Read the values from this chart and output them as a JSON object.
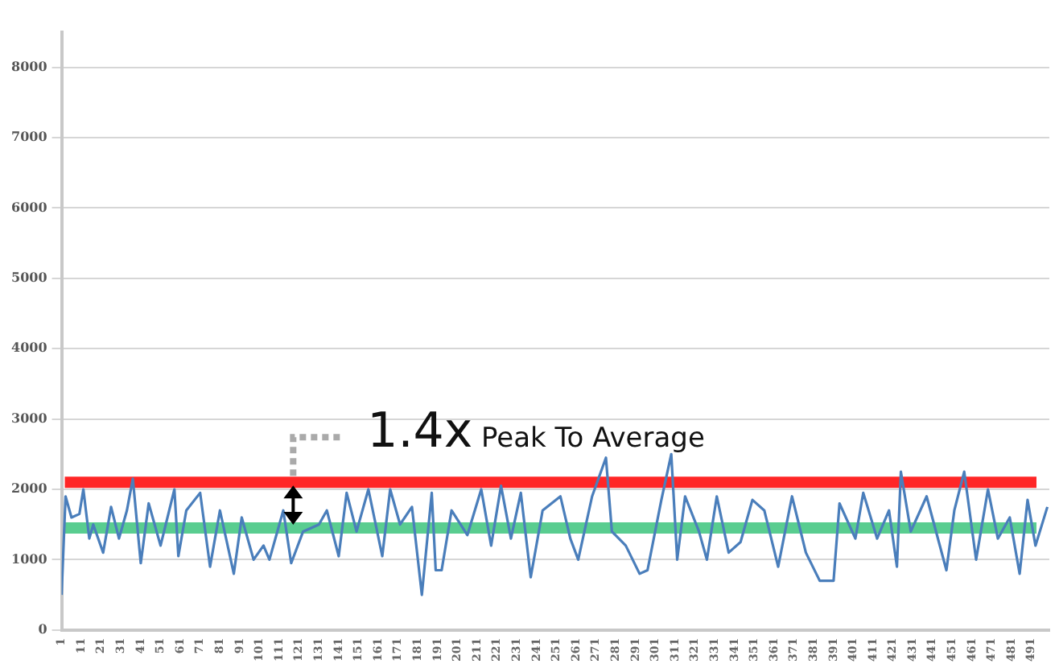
{
  "chart_data": {
    "type": "line",
    "annotations": [
      {
        "text": "1.4x Peak To Average",
        "x": 118,
        "y": 2100
      }
    ],
    "series": [
      {
        "color": "#4a7ebb",
        "x": [
          1,
          3,
          6,
          10,
          12,
          15,
          17,
          22,
          26,
          30,
          34,
          37,
          41,
          45,
          51,
          58,
          60,
          64,
          71,
          76,
          81,
          88,
          92,
          98,
          103,
          106,
          113,
          117,
          123,
          131,
          135,
          141,
          145,
          150,
          156,
          163,
          167,
          172,
          178,
          183,
          188,
          190,
          193,
          198,
          206,
          213,
          218,
          223,
          228,
          233,
          238,
          244,
          253,
          258,
          262,
          269,
          276,
          279,
          286,
          293,
          297,
          304,
          309,
          312,
          316,
          323,
          327,
          332,
          338,
          344,
          350,
          356,
          363,
          370,
          377,
          384,
          391,
          394,
          402,
          406,
          413,
          419,
          423,
          425,
          430,
          438,
          448,
          452,
          457,
          463,
          469,
          474,
          480,
          485,
          489,
          493,
          499
        ],
        "values": [
          500,
          1900,
          1600,
          1650,
          2000,
          1300,
          1500,
          1100,
          1750,
          1300,
          1700,
          2150,
          950,
          1800,
          1200,
          2000,
          1050,
          1700,
          1950,
          900,
          1700,
          800,
          1600,
          1000,
          1200,
          1000,
          1700,
          950,
          1400,
          1500,
          1700,
          1050,
          1950,
          1400,
          2000,
          1050,
          2000,
          1500,
          1750,
          500,
          1950,
          850,
          850,
          1700,
          1350,
          2000,
          1200,
          2050,
          1300,
          1950,
          750,
          1700,
          1900,
          1300,
          1000,
          1900,
          2450,
          1400,
          1200,
          800,
          850,
          1850,
          2500,
          1000,
          1900,
          1400,
          1000,
          1900,
          1100,
          1250,
          1850,
          1700,
          900,
          1900,
          1100,
          700,
          700,
          1800,
          1300,
          1950,
          1300,
          1700,
          900,
          2250,
          1400,
          1900,
          850,
          1700,
          2250,
          1000,
          2000,
          1300,
          1600,
          800,
          1850,
          1200,
          1750
        ]
      }
    ],
    "xlim": [
      1,
      500
    ],
    "xticks": [
      1,
      11,
      21,
      31,
      41,
      51,
      61,
      71,
      81,
      91,
      101,
      111,
      121,
      131,
      141,
      151,
      161,
      171,
      181,
      191,
      201,
      211,
      221,
      231,
      241,
      251,
      261,
      271,
      281,
      291,
      301,
      311,
      321,
      331,
      341,
      351,
      361,
      371,
      381,
      391,
      401,
      411,
      421,
      431,
      441,
      451,
      461,
      471,
      481,
      491
    ],
    "ylim": [
      0,
      8500
    ],
    "yticks": [
      0,
      1000,
      2000,
      3000,
      4000,
      5000,
      6000,
      7000,
      8000
    ],
    "ref_lines": [
      {
        "axis": "y",
        "value": 2100,
        "color": "#ff0000"
      },
      {
        "axis": "y",
        "value": 1450,
        "color": "#3cc47c"
      }
    ],
    "grid": "y",
    "legend": false,
    "marker": "none",
    "line_style": "solid"
  }
}
